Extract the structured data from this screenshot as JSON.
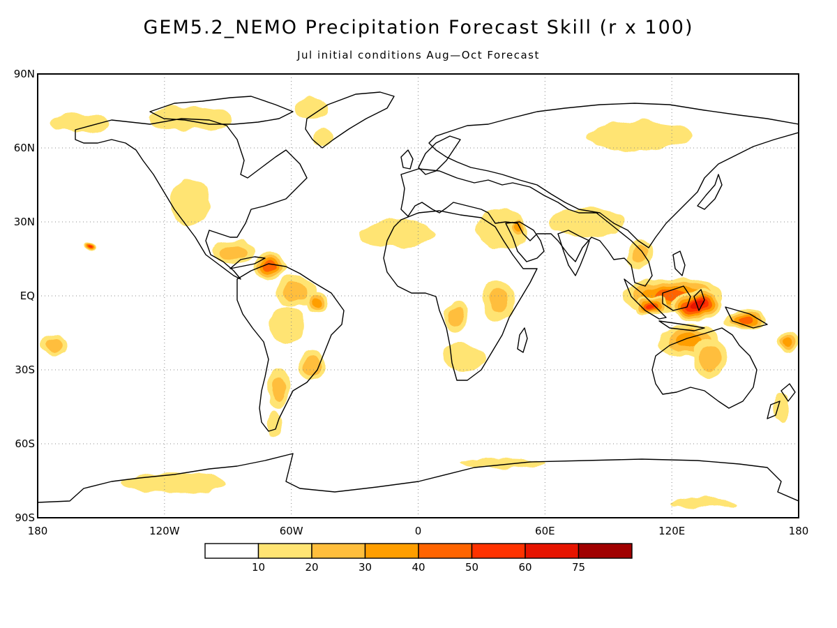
{
  "title": "GEM5.2_NEMO Precipitation Forecast Skill (r x 100)",
  "subtitle": "Jul initial conditions  Aug—Oct Forecast",
  "map": {
    "projection": "cylindrical-equidistant",
    "lon_range": [
      -180,
      180
    ],
    "lat_range": [
      -90,
      90
    ],
    "grid": "dotted",
    "lat_ticks": [
      {
        "value": 90,
        "label": "90N"
      },
      {
        "value": 60,
        "label": "60N"
      },
      {
        "value": 30,
        "label": "30N"
      },
      {
        "value": 0,
        "label": "EQ"
      },
      {
        "value": -30,
        "label": "30S"
      },
      {
        "value": -60,
        "label": "60S"
      },
      {
        "value": -90,
        "label": "90S"
      }
    ],
    "lon_ticks": [
      {
        "value": -180,
        "label": "180"
      },
      {
        "value": -120,
        "label": "120W"
      },
      {
        "value": -60,
        "label": "60W"
      },
      {
        "value": 0,
        "label": "0"
      },
      {
        "value": 60,
        "label": "60E"
      },
      {
        "value": 120,
        "label": "120E"
      },
      {
        "value": 180,
        "label": "180"
      }
    ]
  },
  "colorbar": {
    "levels": [
      "10",
      "20",
      "30",
      "40",
      "50",
      "60",
      "75"
    ],
    "colors": [
      "#ffffff",
      "#ffe473",
      "#ffbe3c",
      "#ff9e00",
      "#ff6400",
      "#ff3200",
      "#e61400",
      "#a00000"
    ]
  },
  "skill_regions": [
    {
      "lon": -160,
      "lat": 70,
      "rx": 14,
      "ry": 4,
      "level": 1
    },
    {
      "lon": -108,
      "lat": 72,
      "rx": 20,
      "ry": 5,
      "level": 1
    },
    {
      "lon": -50,
      "lat": 76,
      "rx": 8,
      "ry": 4,
      "level": 1
    },
    {
      "lon": -45,
      "lat": 64,
      "rx": 5,
      "ry": 3,
      "level": 1
    },
    {
      "lon": -108,
      "lat": 38,
      "rx": 10,
      "ry": 9,
      "level": 1
    },
    {
      "lon": -88,
      "lat": 18,
      "rx": 10,
      "ry": 5,
      "level": 2
    },
    {
      "lon": -70,
      "lat": 12,
      "rx": 8,
      "ry": 5,
      "level": 4
    },
    {
      "lon": -58,
      "lat": 2,
      "rx": 10,
      "ry": 6,
      "level": 2
    },
    {
      "lon": -48,
      "lat": -3,
      "rx": 6,
      "ry": 4,
      "level": 3
    },
    {
      "lon": -62,
      "lat": -12,
      "rx": 8,
      "ry": 8,
      "level": 1
    },
    {
      "lon": -50,
      "lat": -28,
      "rx": 6,
      "ry": 6,
      "level": 2
    },
    {
      "lon": -66,
      "lat": -38,
      "rx": 5,
      "ry": 8,
      "level": 2
    },
    {
      "lon": -68,
      "lat": -52,
      "rx": 4,
      "ry": 5,
      "level": 1
    },
    {
      "lon": -155,
      "lat": 20,
      "rx": 3,
      "ry": 2,
      "level": 5
    },
    {
      "lon": -172,
      "lat": -20,
      "rx": 7,
      "ry": 4,
      "level": 2
    },
    {
      "lon": -10,
      "lat": 25,
      "rx": 18,
      "ry": 6,
      "level": 1
    },
    {
      "lon": 40,
      "lat": 27,
      "rx": 12,
      "ry": 8,
      "level": 1
    },
    {
      "lon": 48,
      "lat": 28,
      "rx": 4,
      "ry": 4,
      "level": 3
    },
    {
      "lon": 38,
      "lat": -2,
      "rx": 8,
      "ry": 8,
      "level": 2
    },
    {
      "lon": 18,
      "lat": -8,
      "rx": 5,
      "ry": 6,
      "level": 2
    },
    {
      "lon": 22,
      "lat": -25,
      "rx": 10,
      "ry": 6,
      "level": 1
    },
    {
      "lon": 120,
      "lat": 0,
      "rx": 24,
      "ry": 7,
      "level": 4
    },
    {
      "lon": 132,
      "lat": -4,
      "rx": 12,
      "ry": 6,
      "level": 6
    },
    {
      "lon": 110,
      "lat": -4,
      "rx": 8,
      "ry": 4,
      "level": 5
    },
    {
      "lon": 128,
      "lat": -18,
      "rx": 14,
      "ry": 7,
      "level": 3
    },
    {
      "lon": 138,
      "lat": -25,
      "rx": 8,
      "ry": 8,
      "level": 2
    },
    {
      "lon": 155,
      "lat": -10,
      "rx": 10,
      "ry": 4,
      "level": 4
    },
    {
      "lon": 175,
      "lat": -18,
      "rx": 5,
      "ry": 4,
      "level": 3
    },
    {
      "lon": 105,
      "lat": 17,
      "rx": 6,
      "ry": 6,
      "level": 2
    },
    {
      "lon": 105,
      "lat": 65,
      "rx": 25,
      "ry": 6,
      "level": 1
    },
    {
      "lon": 80,
      "lat": 30,
      "rx": 18,
      "ry": 6,
      "level": 1
    },
    {
      "lon": 172,
      "lat": -45,
      "rx": 4,
      "ry": 6,
      "level": 1
    },
    {
      "lon": -115,
      "lat": -76,
      "rx": 25,
      "ry": 4,
      "level": 1
    },
    {
      "lon": 40,
      "lat": -68,
      "rx": 20,
      "ry": 2,
      "level": 1
    },
    {
      "lon": 135,
      "lat": -84,
      "rx": 16,
      "ry": 2,
      "level": 1
    }
  ]
}
